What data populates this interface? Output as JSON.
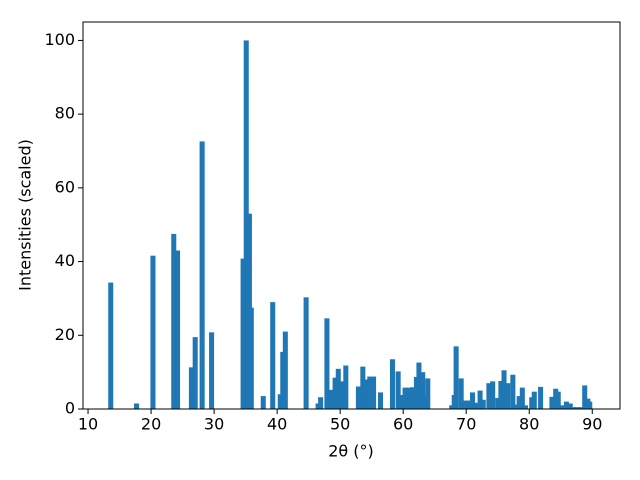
{
  "chart_data": {
    "type": "bar",
    "xlabel": "2θ (°)",
    "ylabel": "Intensities (scaled)",
    "color": "#1f77b4",
    "x": [
      13.6,
      17.7,
      20.3,
      23.6,
      24.2,
      26.4,
      27.0,
      28.1,
      29.6,
      34.6,
      35.1,
      35.6,
      35.9,
      37.8,
      39.3,
      40.5,
      40.9,
      41.3,
      44.6,
      46.5,
      46.9,
      47.9,
      48.5,
      49.2,
      49.7,
      50.3,
      50.9,
      52.9,
      53.6,
      54.1,
      54.7,
      55.3,
      56.4,
      58.3,
      59.2,
      59.6,
      60.3,
      60.9,
      61.5,
      62.1,
      62.5,
      63.1,
      63.4,
      63.9,
      67.7,
      68.1,
      68.4,
      69.2,
      69.8,
      70.5,
      71.0,
      71.6,
      72.2,
      72.7,
      73.6,
      74.2,
      75.0,
      75.5,
      76.0,
      76.6,
      77.4,
      78.0,
      78.4,
      78.9,
      79.4,
      80.4,
      80.8,
      81.8,
      83.6,
      84.2,
      84.6,
      85.2,
      85.9,
      86.5,
      87.0,
      87.6,
      88.2,
      88.8,
      89.3,
      89.6
    ],
    "values": [
      34.3,
      1.5,
      41.6,
      47.5,
      43,
      11.3,
      19.5,
      72.6,
      20.8,
      40.8,
      100,
      53,
      27.5,
      3.5,
      29,
      4,
      15.5,
      21,
      30.3,
      1.5,
      3.2,
      24.6,
      5.2,
      8.5,
      10.9,
      7.5,
      11.8,
      6.1,
      11.5,
      8.0,
      8.8,
      8.8,
      4.5,
      13.5,
      10.2,
      3.8,
      5.8,
      5.8,
      5.9,
      8.7,
      12.6,
      10.0,
      3.5,
      8.3,
      1,
      3.8,
      17,
      8.3,
      2.3,
      2.3,
      4.5,
      1.7,
      5,
      2.5,
      7,
      7.5,
      3,
      7.6,
      10.5,
      7,
      9.3,
      1.2,
      3.5,
      5.8,
      1,
      3.2,
      4.7,
      6,
      3.3,
      5.5,
      4.7,
      1,
      2,
      1.5,
      0.5,
      0.5,
      0.5,
      6.4,
      2.8,
      2
    ],
    "xlim": [
      9.2,
      94.4
    ],
    "xticks": [
      10,
      20,
      30,
      40,
      50,
      60,
      70,
      80,
      90
    ],
    "ylim": [
      0,
      105
    ],
    "yticks": [
      0,
      20,
      40,
      60,
      80,
      100
    ],
    "grid": false
  }
}
